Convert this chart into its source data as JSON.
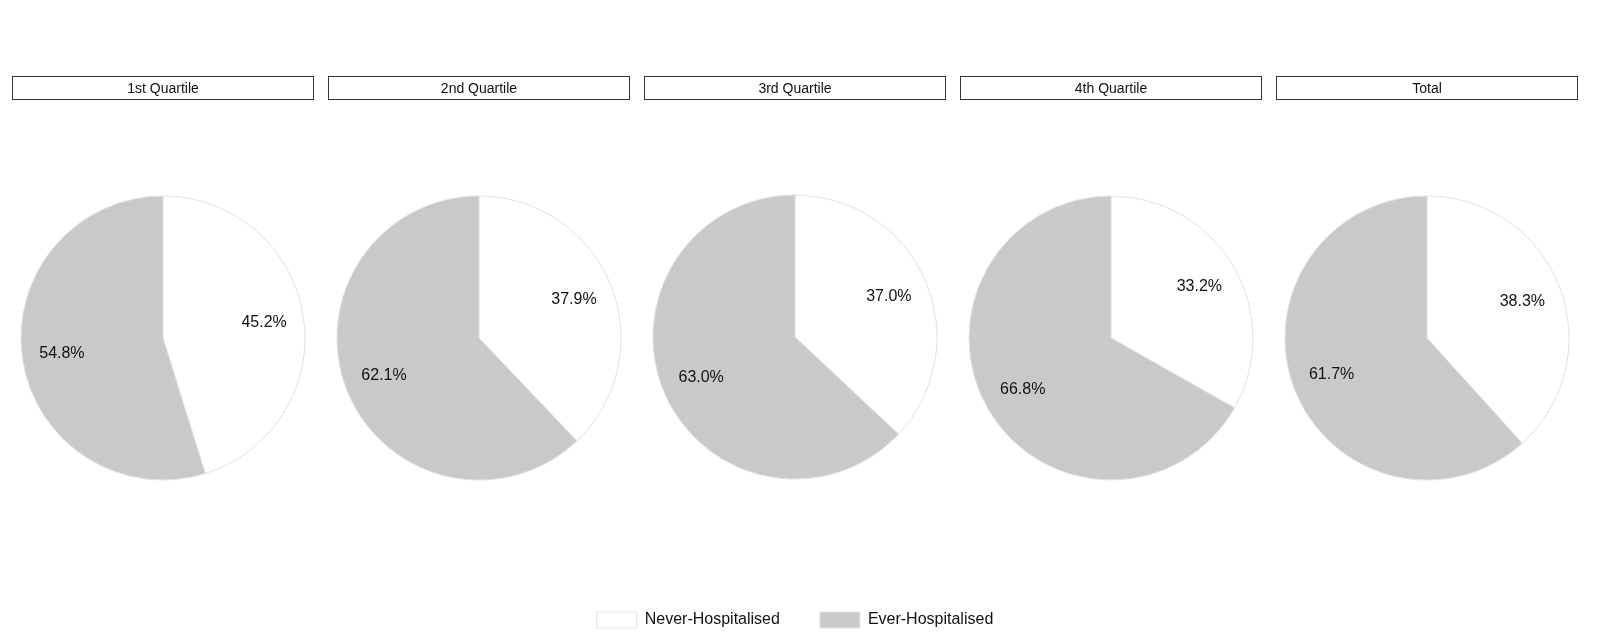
{
  "chart_data": [
    {
      "type": "pie",
      "title": "1st Quartile",
      "categories": [
        null,
        null
      ],
      "values": [
        45.2,
        54.8
      ],
      "colors": [
        "#ffffff",
        "#c9c9c9"
      ],
      "value_labels": [
        "45.2%",
        "54.8%"
      ]
    },
    {
      "type": "pie",
      "title": "2nd Quartile",
      "categories": [
        null,
        null
      ],
      "values": [
        37.9,
        62.1
      ],
      "colors": [
        "#ffffff",
        "#c9c9c9"
      ],
      "value_labels": [
        "37.9%",
        "62.1%"
      ]
    },
    {
      "type": "pie",
      "title": "3rd Quartile",
      "categories": [
        "Never-Hospitalised",
        "Ever-Hospitalised"
      ],
      "values": [
        37.0,
        63.0
      ],
      "colors": [
        "#ffffff",
        "#c9c9c9"
      ],
      "value_labels": [
        "37.0%",
        "63.0%"
      ],
      "legend": "bottom"
    },
    {
      "type": "pie",
      "title": "4th Quartile",
      "categories": [
        null,
        null
      ],
      "values": [
        33.2,
        66.8
      ],
      "colors": [
        "#ffffff",
        "#c9c9c9"
      ],
      "value_labels": [
        "33.2%",
        "66.8%"
      ]
    },
    {
      "type": "pie",
      "title": "Total",
      "categories": [
        null,
        null
      ],
      "values": [
        38.3,
        61.7
      ],
      "colors": [
        "#ffffff",
        "#c9c9c9"
      ],
      "value_labels": [
        "38.3%",
        "61.7%"
      ]
    }
  ]
}
